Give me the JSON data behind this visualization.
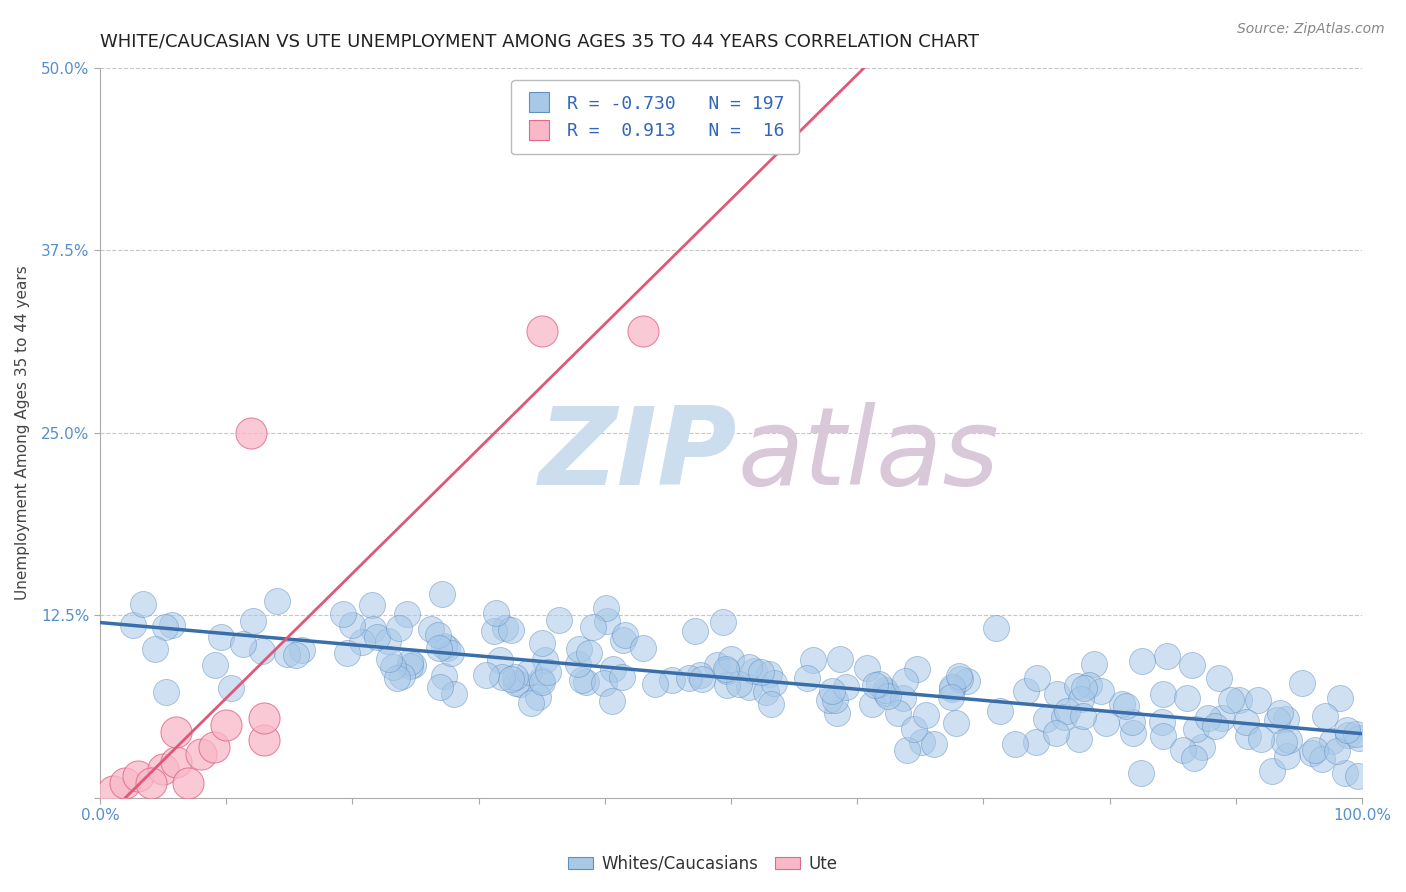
{
  "title": "WHITE/CAUCASIAN VS UTE UNEMPLOYMENT AMONG AGES 35 TO 44 YEARS CORRELATION CHART",
  "source_text": "Source: ZipAtlas.com",
  "ylabel": "Unemployment Among Ages 35 to 44 years",
  "xlim": [
    0,
    1
  ],
  "ylim": [
    0,
    0.5
  ],
  "yticks": [
    0,
    0.125,
    0.25,
    0.375,
    0.5
  ],
  "ytick_labels": [
    "",
    "12.5%",
    "25.0%",
    "37.5%",
    "50.0%"
  ],
  "xtick_labels_show": [
    "0.0%",
    "100.0%"
  ],
  "blue_color": "#a8c8e8",
  "pink_color": "#f8b8c8",
  "blue_edge_color": "#6090c0",
  "pink_edge_color": "#e06888",
  "blue_line_color": "#3a6ea8",
  "pink_line_color": "#e05878",
  "legend_r_blue": "-0.730",
  "legend_n_blue": "197",
  "legend_r_pink": "0.913",
  "legend_n_pink": "16",
  "watermark_zip_color": "#ccdded",
  "watermark_atlas_color": "#d8c8d8",
  "title_fontsize": 13,
  "axis_label_fontsize": 11,
  "tick_fontsize": 11,
  "legend_fontsize": 13,
  "source_fontsize": 10,
  "blue_R": -0.73,
  "pink_R": 0.913,
  "blue_N": 197,
  "pink_N": 16,
  "background_color": "#ffffff",
  "grid_color": "#c8c8c8",
  "axis_color": "#aaaaaa",
  "tick_label_color": "#5590cc",
  "legend_value_color": "#3366bb"
}
